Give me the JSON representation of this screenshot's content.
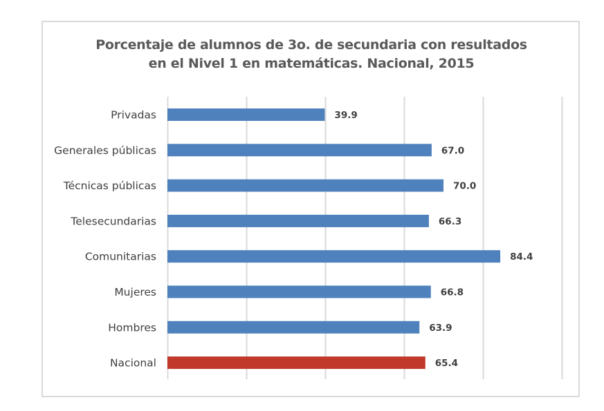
{
  "chart_data": {
    "type": "bar",
    "orientation": "horizontal",
    "title": "Porcentaje de alumnos de 3o. de secundaria con resultados en el Nivel 1 en matemáticas. Nacional, 2015",
    "title_lines": [
      "Porcentaje de alumnos de 3o. de secundaria con resultados",
      "en el Nivel 1 en matemáticas. Nacional, 2015"
    ],
    "categories": [
      "Privadas",
      "Generales públicas",
      "Técnicas públicas",
      "Telesecundarias",
      "Comunitarias",
      "Mujeres",
      "Hombres",
      "Nacional"
    ],
    "values": [
      39.9,
      67.0,
      70.0,
      66.3,
      84.4,
      66.8,
      63.9,
      65.4
    ],
    "value_labels": [
      "39.9",
      "67.0",
      "70.0",
      "66.3",
      "84.4",
      "66.8",
      "63.9",
      "65.4"
    ],
    "bar_colors": [
      "#4f81bd",
      "#4f81bd",
      "#4f81bd",
      "#4f81bd",
      "#4f81bd",
      "#4f81bd",
      "#4f81bd",
      "#c0392b"
    ],
    "xlabel": "",
    "ylabel": "",
    "xlim": [
      0,
      100
    ],
    "grid_step": 20,
    "grid": true,
    "x_tick_labels_shown": false,
    "legend": "none",
    "colors": {
      "primary": "#4f81bd",
      "highlight": "#c0392b",
      "grid": "#d9d9d9",
      "text": "#404040"
    }
  }
}
